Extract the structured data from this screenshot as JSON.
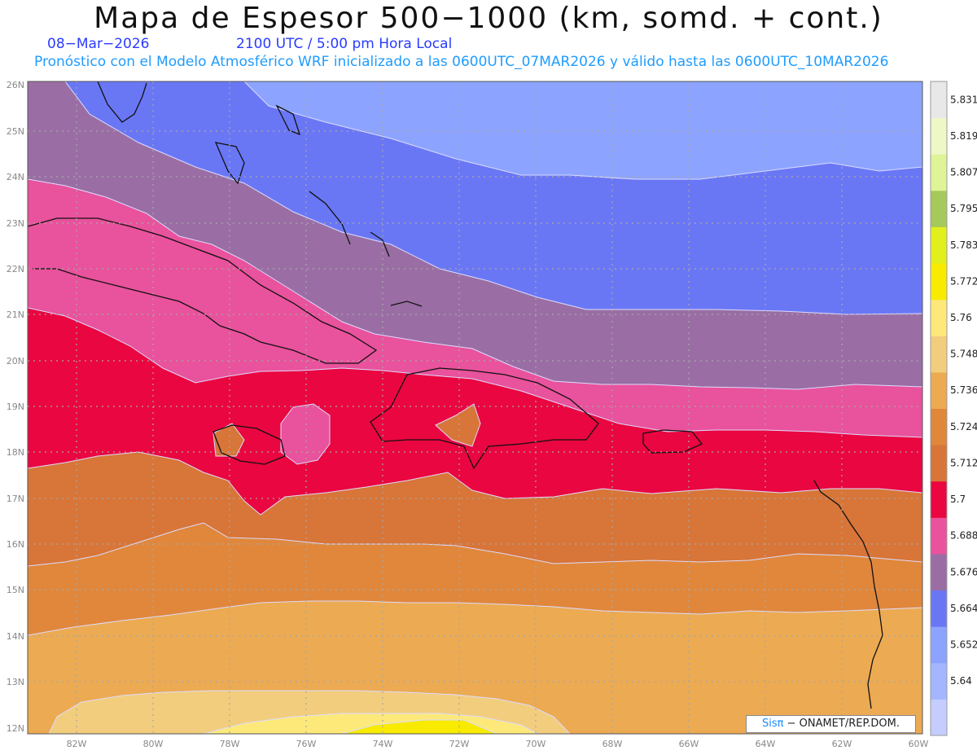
{
  "header": {
    "title": "Mapa de Espesor 500−1000 (km, somd. + cont.)",
    "date": "08−Mar−2026",
    "time": "2100 UTC / 5:00 pm Hora Local",
    "forecast": "Pronóstico con el Modelo Atmosférico WRF inicializado a las 0600UTC_07MAR2026 y válido hasta las  0600UTC_10MAR2026"
  },
  "credit": {
    "logo": "Sisπ",
    "text": " − ONAMET/REP.DOM."
  },
  "map": {
    "lat_labels": [
      "12N",
      "13N",
      "14N",
      "15N",
      "16N",
      "17N",
      "18N",
      "19N",
      "20N",
      "21N",
      "22N",
      "23N",
      "24N",
      "25N",
      "26N"
    ],
    "lon_labels": [
      "82W",
      "80W",
      "78W",
      "76W",
      "74W",
      "72W",
      "70W",
      "68W",
      "66W",
      "64W",
      "62W",
      "60W"
    ]
  },
  "colorbar": {
    "labels": [
      "5.64",
      "5.652",
      "5.664",
      "5.676",
      "5.688",
      "5.7",
      "5.712",
      "5.724",
      "5.736",
      "5.748",
      "5.76",
      "5.772",
      "5.783",
      "5.795",
      "5.807",
      "5.819",
      "5.831"
    ],
    "colors": [
      "#c5cdff",
      "#a4b6ff",
      "#8ca4ff",
      "#6a77f5",
      "#9a6ea5",
      "#e9529c",
      "#ea0640",
      "#d87538",
      "#e0873c",
      "#ecaa52",
      "#f2cd7e",
      "#fde97a",
      "#f8eb00",
      "#e1ef1c",
      "#a6c95c",
      "#def496",
      "#eef7c6",
      "#e8e8e8"
    ]
  }
}
